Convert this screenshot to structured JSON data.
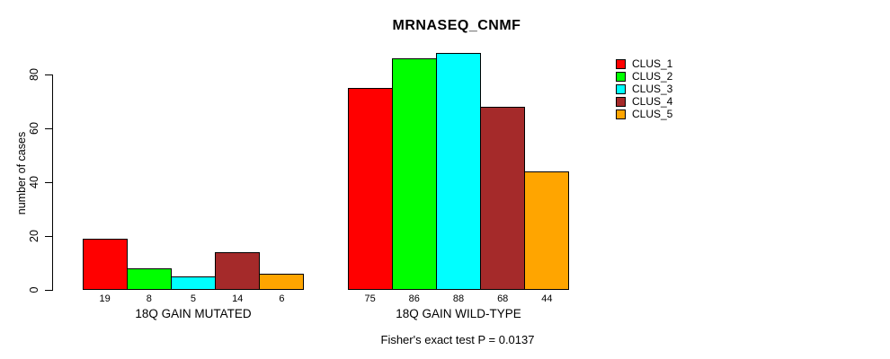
{
  "title": "MRNASEQ_CNMF",
  "footer": "Fisher's exact test P = 0.0137",
  "y_axis": {
    "label": "number of cases",
    "ticks": [
      0,
      20,
      40,
      60,
      80
    ]
  },
  "legend": {
    "items": [
      {
        "label": "CLUS_1",
        "color": "#FF0000"
      },
      {
        "label": "CLUS_2",
        "color": "#00FF00"
      },
      {
        "label": "CLUS_3",
        "color": "#00FFFF"
      },
      {
        "label": "CLUS_4",
        "color": "#A52A2A"
      },
      {
        "label": "CLUS_5",
        "color": "#FFA500"
      }
    ]
  },
  "chart_data": {
    "type": "bar",
    "title": "MRNASEQ_CNMF",
    "xlabel": "",
    "ylabel": "number of cases",
    "ylim": [
      0,
      88
    ],
    "yticks": [
      0,
      20,
      40,
      60,
      80
    ],
    "grid": false,
    "legend_position": "right",
    "bar_value_labels_shown": true,
    "series_names": [
      "CLUS_1",
      "CLUS_2",
      "CLUS_3",
      "CLUS_4",
      "CLUS_5"
    ],
    "series_colors": [
      "#FF0000",
      "#00FF00",
      "#00FFFF",
      "#A52A2A",
      "#FFA500"
    ],
    "groups": [
      {
        "label": "18Q GAIN MUTATED",
        "values": [
          19,
          8,
          5,
          14,
          6
        ]
      },
      {
        "label": "18Q GAIN WILD-TYPE",
        "values": [
          75,
          86,
          88,
          68,
          44
        ]
      }
    ],
    "annotation": "Fisher's exact test P = 0.0137"
  }
}
